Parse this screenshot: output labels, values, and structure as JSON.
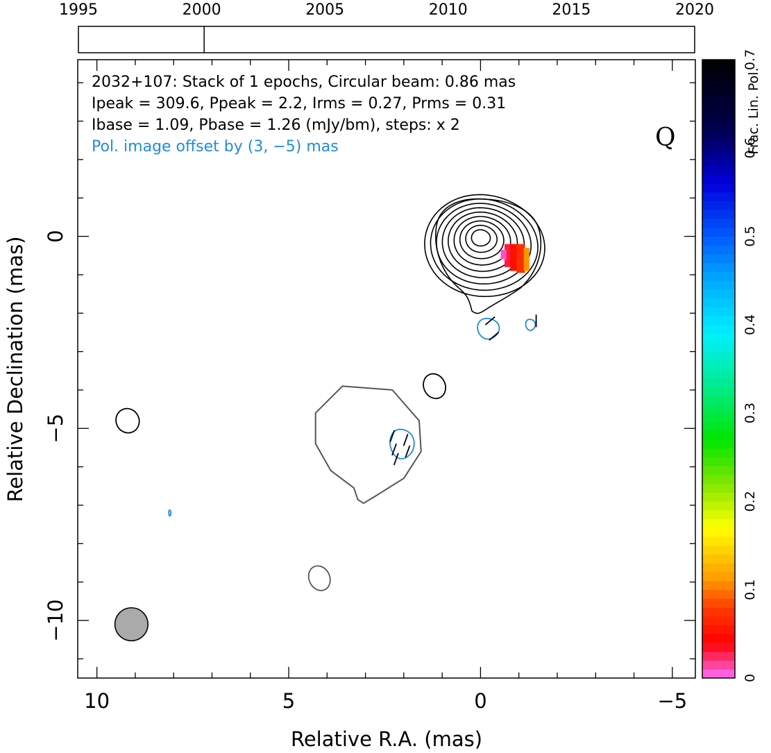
{
  "chart_data": {
    "type": "contour",
    "source": "2032+107",
    "annotation_lines": [
      "2032+107: Stack of 1 epochs, Circular beam: 0.86 mas",
      "Ipeak = 309.6, Ppeak = 2.2, Irms = 0.27, Prms = 0.31",
      "Ibase = 1.09, Pbase = 1.26 (mJy/bm), steps: x 2",
      "Pol. image offset by (3, −5) mas"
    ],
    "stokes_label": "Q",
    "xlabel": "Relative R.A. (mas)",
    "ylabel": "Relative Declination (mas)",
    "xlim": [
      10.5,
      -5.6
    ],
    "ylim": [
      -11.5,
      4.6
    ],
    "x_ticks": [
      10,
      5,
      0,
      -5
    ],
    "x_tick_labels": [
      "10",
      "5",
      "0",
      "−5"
    ],
    "y_ticks": [
      0,
      -5,
      -10
    ],
    "y_tick_labels": [
      "0",
      "−5",
      "−10"
    ],
    "timeline": {
      "range": [
        1995,
        2020
      ],
      "tick_labels": [
        "1995",
        "2000",
        "2005",
        "2010",
        "2015",
        "2020"
      ],
      "epochs": [
        2000.1
      ]
    },
    "colorbar": {
      "label": "Frac. Lin. Pol.",
      "range": [
        0,
        0.7
      ],
      "tick_labels": [
        "0",
        "0.1",
        "0.2",
        "0.3",
        "0.4",
        "0.5",
        "0.6",
        "0.7"
      ]
    },
    "core": {
      "x": 0.0,
      "y": 0.0,
      "n_contours": 9
    },
    "isolated_contours": [
      {
        "x": 9.2,
        "y": -4.8,
        "rx": 0.3,
        "ry": 0.32
      },
      {
        "x": 1.2,
        "y": -3.9,
        "rx": 0.28,
        "ry": 0.33
      },
      {
        "x": 4.2,
        "y": -8.9,
        "rx": 0.27,
        "ry": 0.33
      }
    ],
    "pol_contours": [
      {
        "x": -0.2,
        "y": -2.4,
        "rx": 0.27,
        "ry": 0.28
      },
      {
        "x": -1.3,
        "y": -2.3,
        "rx": 0.12,
        "ry": 0.15
      },
      {
        "x": 2.05,
        "y": -5.4,
        "rx": 0.3,
        "ry": 0.4
      },
      {
        "x": 8.1,
        "y": -7.2,
        "rx": 0.025,
        "ry": 0.08
      }
    ],
    "fractional_pol_pixels": [
      {
        "x": -0.75,
        "y": -0.2,
        "w": 0.25,
        "h": 0.6,
        "frac": 0.03
      },
      {
        "x": -0.9,
        "y": -0.2,
        "w": 0.25,
        "h": 0.7,
        "frac": 0.05
      },
      {
        "x": -1.05,
        "y": -0.2,
        "w": 0.22,
        "h": 0.75,
        "frac": 0.07
      },
      {
        "x": -1.2,
        "y": -0.3,
        "w": 0.15,
        "h": 0.6,
        "frac": 0.11
      },
      {
        "x": -0.6,
        "y": -0.35,
        "w": 0.15,
        "h": 0.25,
        "frac": 0.01
      }
    ],
    "evpa_sticks": [
      {
        "x": -0.25,
        "y": -2.2,
        "angle": 40
      },
      {
        "x": -0.35,
        "y": -2.6,
        "angle": 40
      },
      {
        "x": -1.45,
        "y": -2.2,
        "angle": 90
      },
      {
        "x": 2.3,
        "y": -5.2,
        "angle": 70
      },
      {
        "x": 1.95,
        "y": -5.3,
        "angle": 70
      },
      {
        "x": 2.25,
        "y": -5.55,
        "angle": 70
      },
      {
        "x": 1.9,
        "y": -5.6,
        "angle": 70
      },
      {
        "x": 2.2,
        "y": -5.8,
        "angle": 70
      }
    ],
    "beam": {
      "x": 9.1,
      "y": -10.1,
      "fwhm": 0.86
    }
  }
}
